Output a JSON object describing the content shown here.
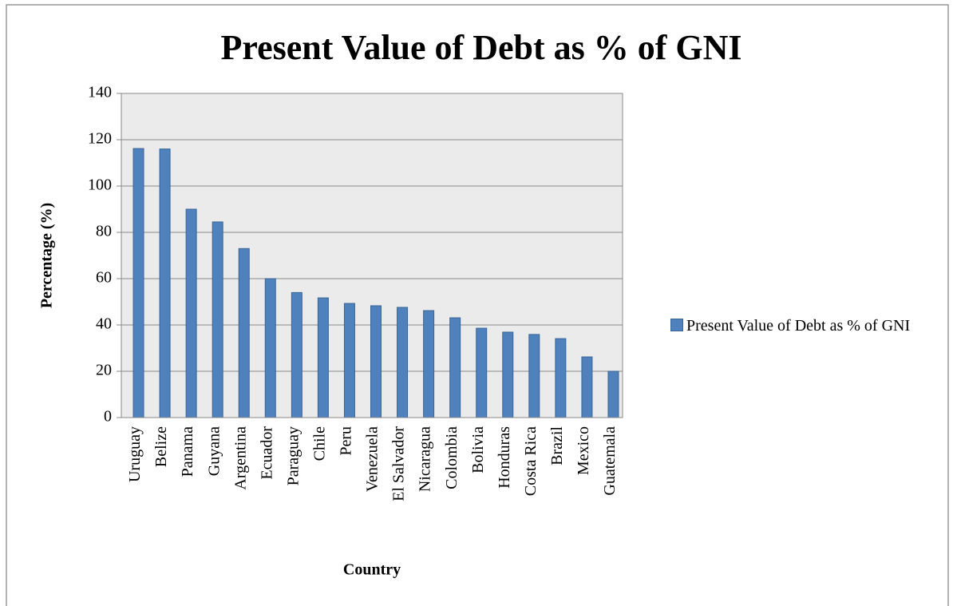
{
  "chart_data": {
    "type": "bar",
    "title": "Present Value of Debt as % of GNI",
    "x_label": "Country",
    "y_label": "Percentage (%)",
    "categories": [
      "Uruguay",
      "Belize",
      "Panama",
      "Guyana",
      "Argentina",
      "Ecuador",
      "Paraguay",
      "Chile",
      "Peru",
      "Venezuela",
      "El Salvador",
      "Nicaragua",
      "Colombia",
      "Bolivia",
      "Honduras",
      "Costa Rica",
      "Brazil",
      "Mexico",
      "Guatemala"
    ],
    "series": [
      {
        "name": "Present Value of Debt as % of GNI",
        "color": "#4f81bd",
        "values": [
          116.2,
          116,
          90,
          84.5,
          73,
          60,
          54,
          51.7,
          49.3,
          48.3,
          47.6,
          46.2,
          43.1,
          38.6,
          36.9,
          35.9,
          34.1,
          26.2,
          20
        ]
      }
    ],
    "ylim": [
      0,
      140
    ],
    "yticks": [
      0,
      20,
      40,
      60,
      80,
      100,
      120,
      140
    ],
    "grid": true,
    "legend": "right"
  }
}
